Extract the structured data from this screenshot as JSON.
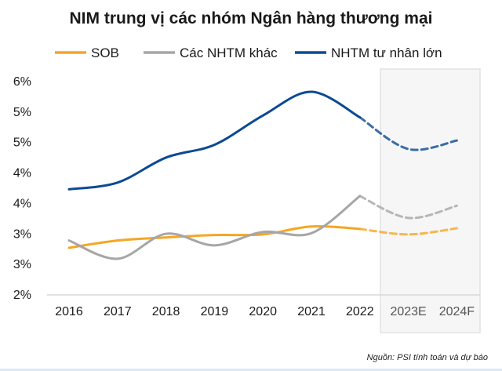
{
  "chart_data": {
    "type": "line",
    "title": "NIM trung vị các nhóm Ngân hàng thương mại",
    "categories": [
      "2016",
      "2017",
      "2018",
      "2019",
      "2020",
      "2021",
      "2022",
      "2023E",
      "2024F"
    ],
    "forecast_categories": [
      "2023E",
      "2024F"
    ],
    "y_tick_labels": [
      "2%",
      "3%",
      "3%",
      "4%",
      "4%",
      "5%",
      "5%",
      "6%"
    ],
    "ylim": [
      2.0,
      5.5
    ],
    "y_unit": "%",
    "grid": false,
    "legend_position": "top",
    "series": [
      {
        "name": "SOB",
        "color": "#F5A623",
        "values": [
          2.76,
          2.88,
          2.93,
          2.97,
          2.98,
          3.11,
          3.07,
          2.98,
          3.08
        ]
      },
      {
        "name": "Các NHTM khác",
        "color": "#A6A6A6",
        "values": [
          2.88,
          2.58,
          2.99,
          2.8,
          3.02,
          3.0,
          3.61,
          3.25,
          3.45
        ]
      },
      {
        "name": "NHTM tư nhân lớn",
        "color": "#0B4A94",
        "values": [
          3.72,
          3.83,
          4.24,
          4.45,
          4.93,
          5.32,
          4.9,
          4.38,
          4.52
        ]
      }
    ],
    "source": "Nguồn: PSI tính toán và dự báo"
  }
}
